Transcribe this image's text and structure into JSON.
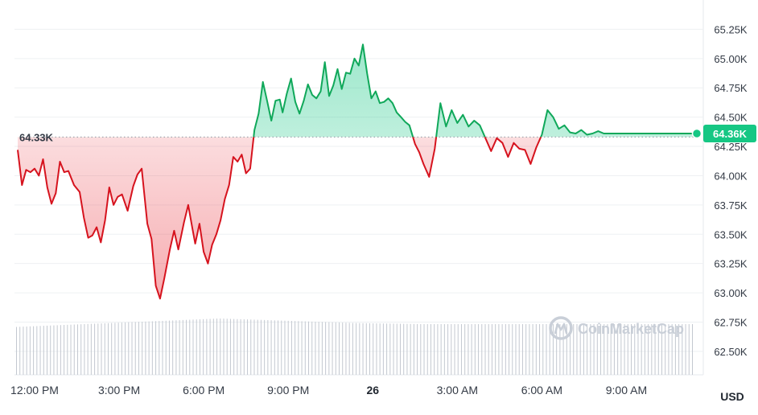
{
  "chart_data": {
    "type": "line",
    "currency": "USD",
    "reference_value_label": "64.33K",
    "reference_value": 64330,
    "current_value_label": "64.36K",
    "current_value": 64360,
    "y_ticks": [
      "62.50K",
      "62.75K",
      "63.00K",
      "63.25K",
      "63.50K",
      "63.75K",
      "64.00K",
      "64.25K",
      "64.50K",
      "64.75K",
      "65.00K",
      "65.25K"
    ],
    "y_tick_values": [
      62500,
      62750,
      63000,
      63250,
      63500,
      63750,
      64000,
      64250,
      64500,
      64750,
      65000,
      65250
    ],
    "ylim": [
      62300,
      65500
    ],
    "x_ticks": [
      {
        "label": "12:00 PM",
        "hour": 0,
        "bold": false
      },
      {
        "label": "3:00 PM",
        "hour": 3,
        "bold": false
      },
      {
        "label": "6:00 PM",
        "hour": 6,
        "bold": false
      },
      {
        "label": "9:00 PM",
        "hour": 9,
        "bold": false
      },
      {
        "label": "26",
        "hour": 12,
        "bold": true
      },
      {
        "label": "3:00 AM",
        "hour": 15,
        "bold": false
      },
      {
        "label": "6:00 AM",
        "hour": 18,
        "bold": false
      },
      {
        "label": "9:00 AM",
        "hour": 21,
        "bold": false
      }
    ],
    "xlim": [
      -0.6,
      23.5
    ],
    "colors": {
      "up": "#16c784",
      "up_line": "#10a85a",
      "down": "#ea3943",
      "down_line": "#d6131e",
      "grid": "#eef0f3",
      "volume": "#c3c8d0"
    },
    "watermark": "CoinMarketCap",
    "series": [
      {
        "x": [
          -0.6,
          -0.45,
          -0.3,
          -0.15,
          0.0,
          0.15,
          0.3,
          0.45,
          0.6,
          0.75,
          0.9,
          1.05,
          1.2,
          1.4,
          1.6,
          1.75,
          1.9,
          2.05,
          2.2,
          2.35,
          2.5,
          2.65,
          2.8,
          2.95,
          3.1,
          3.3,
          3.5,
          3.65,
          3.8,
          4.0,
          4.15,
          4.3,
          4.45,
          4.6,
          4.8,
          4.95,
          5.1,
          5.3,
          5.45,
          5.6,
          5.7,
          5.85,
          6.0,
          6.15,
          6.3,
          6.45,
          6.6,
          6.75,
          6.9,
          7.05,
          7.2,
          7.35,
          7.5,
          7.65,
          7.8,
          7.95,
          8.1,
          8.25,
          8.4,
          8.55,
          8.7,
          8.8,
          8.95,
          9.1,
          9.25,
          9.4,
          9.55,
          9.7,
          9.85,
          10.0,
          10.15,
          10.3,
          10.45,
          10.6,
          10.75,
          10.9,
          11.05,
          11.2,
          11.35,
          11.5,
          11.65,
          11.8,
          11.95,
          12.1,
          12.25,
          12.4,
          12.55,
          12.7,
          12.85,
          13.0,
          13.15,
          13.3,
          13.5,
          13.65,
          13.8,
          14.0,
          14.2,
          14.4,
          14.6,
          14.8,
          15.0,
          15.2,
          15.4,
          15.6,
          15.8,
          16.0,
          16.2,
          16.4,
          16.6,
          16.8,
          17.0,
          17.2,
          17.4,
          17.6,
          17.8,
          18.0,
          18.2,
          18.4,
          18.6,
          18.8,
          19.0,
          19.2,
          19.4,
          19.6,
          19.8,
          20.0,
          20.2,
          20.4,
          20.6,
          20.8,
          21.0,
          21.2,
          21.4,
          21.6,
          21.8,
          22.0,
          22.2,
          22.4,
          22.6,
          22.8,
          23.0,
          23.2,
          23.35,
          23.5
        ],
        "y": [
          64220,
          63920,
          64050,
          64030,
          64060,
          64000,
          64140,
          63900,
          63760,
          63850,
          64120,
          64030,
          64040,
          63920,
          63860,
          63640,
          63470,
          63490,
          63560,
          63430,
          63620,
          63900,
          63750,
          63820,
          63840,
          63700,
          63910,
          64010,
          64060,
          63590,
          63460,
          63060,
          62950,
          63120,
          63370,
          63530,
          63370,
          63600,
          63750,
          63550,
          63420,
          63590,
          63350,
          63250,
          63410,
          63500,
          63620,
          63800,
          63920,
          64160,
          64120,
          64180,
          64020,
          64060,
          64390,
          64530,
          64800,
          64640,
          64470,
          64640,
          64650,
          64540,
          64700,
          64830,
          64630,
          64530,
          64640,
          64780,
          64690,
          64660,
          64720,
          64970,
          64680,
          64770,
          64910,
          64740,
          64880,
          64870,
          65000,
          64940,
          65120,
          64870,
          64660,
          64720,
          64620,
          64630,
          64660,
          64620,
          64540,
          64500,
          64460,
          64430,
          64270,
          64200,
          64100,
          63990,
          64230,
          64620,
          64420,
          64560,
          64450,
          64520,
          64420,
          64470,
          64430,
          64320,
          64210,
          64320,
          64280,
          64160,
          64280,
          64230,
          64220,
          64100,
          64240,
          64350,
          64560,
          64500,
          64400,
          64430,
          64370,
          64360,
          64390,
          64350,
          64360,
          64380,
          64360,
          64360,
          64360,
          64360,
          64360,
          64360,
          64360,
          64360,
          64360,
          64360,
          64360,
          64360,
          64360,
          64360,
          64360,
          64360,
          64360,
          64360
        ]
      }
    ],
    "volume": {
      "bars": 200,
      "relative_heights": [
        0.85,
        0.9,
        0.95,
        1.0,
        0.96,
        0.92,
        0.9,
        0.9,
        0.9,
        0.9,
        0.9
      ]
    }
  }
}
